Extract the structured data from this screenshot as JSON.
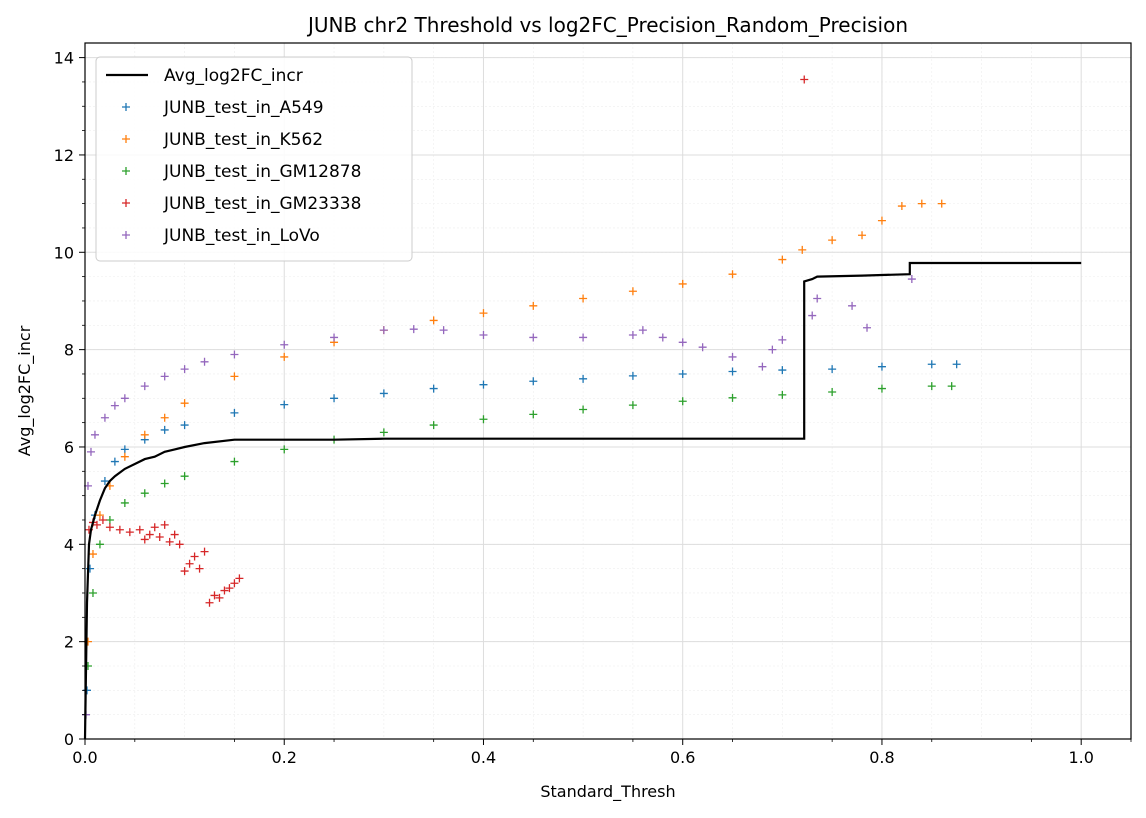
{
  "chart_data": {
    "type": "scatter",
    "title": "JUNB chr2 Threshold vs log2FC_Precision_Random_Precision",
    "xlabel": "Standard_Thresh",
    "ylabel": "Avg_log2FC_incr",
    "xlim": [
      0,
      1.05
    ],
    "ylim": [
      0,
      14.3
    ],
    "xticks": [
      0.0,
      0.2,
      0.4,
      0.6,
      0.8,
      1.0
    ],
    "xtick_labels": [
      "0.0",
      "0.2",
      "0.4",
      "0.6",
      "0.8",
      "1.0"
    ],
    "yticks": [
      0,
      2,
      4,
      6,
      8,
      10,
      12,
      14
    ],
    "ytick_labels": [
      "0",
      "2",
      "4",
      "6",
      "8",
      "10",
      "12",
      "14"
    ],
    "grid": true,
    "legend_position": "top-left",
    "line": {
      "name": "Avg_log2FC_incr",
      "color": "#000000",
      "x": [
        0.0,
        0.002,
        0.004,
        0.006,
        0.01,
        0.015,
        0.02,
        0.025,
        0.03,
        0.04,
        0.05,
        0.06,
        0.07,
        0.08,
        0.09,
        0.1,
        0.12,
        0.15,
        0.2,
        0.25,
        0.3,
        0.4,
        0.5,
        0.6,
        0.7,
        0.722,
        0.722,
        0.73,
        0.735,
        0.78,
        0.828,
        0.828,
        1.0
      ],
      "y": [
        0.0,
        2.8,
        4.0,
        4.3,
        4.6,
        4.9,
        5.15,
        5.3,
        5.4,
        5.55,
        5.65,
        5.75,
        5.8,
        5.9,
        5.95,
        6.0,
        6.08,
        6.15,
        6.15,
        6.15,
        6.17,
        6.17,
        6.17,
        6.17,
        6.17,
        6.17,
        9.4,
        9.45,
        9.5,
        9.52,
        9.55,
        9.78,
        9.78
      ]
    },
    "series": [
      {
        "name": "JUNB_test_in_A549",
        "color": "#1f77b4",
        "x": [
          0.002,
          0.005,
          0.01,
          0.02,
          0.03,
          0.04,
          0.06,
          0.08,
          0.1,
          0.15,
          0.2,
          0.25,
          0.3,
          0.35,
          0.4,
          0.45,
          0.5,
          0.55,
          0.6,
          0.65,
          0.7,
          0.75,
          0.8,
          0.85,
          0.875
        ],
        "y": [
          1.0,
          3.5,
          4.6,
          5.3,
          5.7,
          5.95,
          6.15,
          6.35,
          6.45,
          6.7,
          6.87,
          7.0,
          7.1,
          7.2,
          7.28,
          7.35,
          7.4,
          7.46,
          7.5,
          7.55,
          7.58,
          7.6,
          7.65,
          7.7,
          7.7
        ]
      },
      {
        "name": "JUNB_test_in_K562",
        "color": "#ff7f0e",
        "x": [
          0.003,
          0.008,
          0.015,
          0.025,
          0.04,
          0.06,
          0.08,
          0.1,
          0.15,
          0.2,
          0.25,
          0.3,
          0.35,
          0.4,
          0.45,
          0.5,
          0.55,
          0.6,
          0.65,
          0.7,
          0.72,
          0.75,
          0.78,
          0.8,
          0.82,
          0.84,
          0.86
        ],
        "y": [
          2.0,
          3.8,
          4.6,
          5.2,
          5.8,
          6.25,
          6.6,
          6.9,
          7.45,
          7.85,
          8.15,
          8.4,
          8.6,
          8.75,
          8.9,
          9.05,
          9.2,
          9.35,
          9.55,
          9.85,
          10.05,
          10.25,
          10.35,
          10.65,
          10.95,
          11.0,
          11.0
        ]
      },
      {
        "name": "JUNB_test_in_GM12878",
        "color": "#2ca02c",
        "x": [
          0.003,
          0.008,
          0.015,
          0.025,
          0.04,
          0.06,
          0.08,
          0.1,
          0.15,
          0.2,
          0.25,
          0.3,
          0.35,
          0.4,
          0.45,
          0.5,
          0.55,
          0.6,
          0.65,
          0.7,
          0.75,
          0.8,
          0.85,
          0.87
        ],
        "y": [
          1.5,
          3.0,
          4.0,
          4.5,
          4.85,
          5.05,
          5.25,
          5.4,
          5.7,
          5.95,
          6.15,
          6.3,
          6.45,
          6.57,
          6.67,
          6.77,
          6.86,
          6.94,
          7.01,
          7.07,
          7.13,
          7.2,
          7.25,
          7.25
        ]
      },
      {
        "name": "JUNB_test_in_GM23338",
        "color": "#d62728",
        "x": [
          0.004,
          0.008,
          0.012,
          0.018,
          0.025,
          0.035,
          0.045,
          0.055,
          0.06,
          0.065,
          0.07,
          0.075,
          0.08,
          0.085,
          0.09,
          0.095,
          0.1,
          0.105,
          0.11,
          0.115,
          0.12,
          0.125,
          0.13,
          0.135,
          0.14,
          0.145,
          0.15,
          0.155,
          0.722
        ],
        "y": [
          4.3,
          4.45,
          4.4,
          4.5,
          4.35,
          4.3,
          4.25,
          4.3,
          4.1,
          4.2,
          4.35,
          4.15,
          4.4,
          4.05,
          4.2,
          4.0,
          3.45,
          3.6,
          3.75,
          3.5,
          3.85,
          2.8,
          2.95,
          2.9,
          3.05,
          3.1,
          3.2,
          3.3,
          13.55
        ]
      },
      {
        "name": "JUNB_test_in_LoVo",
        "color": "#9467bd",
        "x": [
          0.001,
          0.003,
          0.006,
          0.01,
          0.02,
          0.03,
          0.04,
          0.06,
          0.08,
          0.1,
          0.12,
          0.15,
          0.2,
          0.25,
          0.3,
          0.33,
          0.36,
          0.4,
          0.45,
          0.5,
          0.55,
          0.56,
          0.58,
          0.6,
          0.62,
          0.65,
          0.68,
          0.69,
          0.7,
          0.73,
          0.735,
          0.77,
          0.785,
          0.83
        ],
        "y": [
          0.5,
          5.2,
          5.9,
          6.25,
          6.6,
          6.85,
          7.0,
          7.25,
          7.45,
          7.6,
          7.75,
          7.9,
          8.1,
          8.25,
          8.4,
          8.42,
          8.4,
          8.3,
          8.25,
          8.25,
          8.3,
          8.4,
          8.25,
          8.15,
          8.05,
          7.85,
          7.65,
          8.0,
          8.2,
          8.7,
          9.05,
          8.9,
          8.45,
          9.45
        ]
      }
    ]
  }
}
